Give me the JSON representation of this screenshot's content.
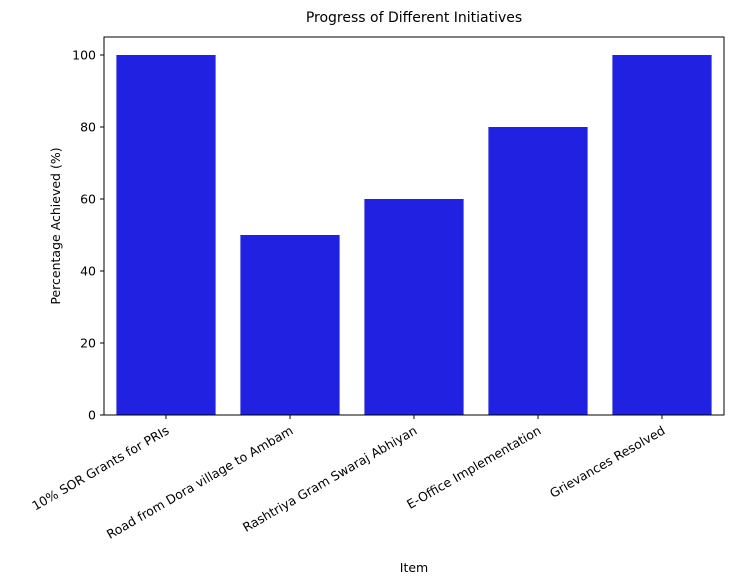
{
  "chart_data": {
    "type": "bar",
    "title": "Progress of Different Initiatives",
    "xlabel": "Item",
    "ylabel": "Percentage Achieved (%)",
    "categories": [
      "10% SOR Grants for PRIs",
      "Road from Dora village to Ambam",
      "Rashtriya Gram Swaraj Abhiyan",
      "E-Office Implementation",
      "Grievances Resolved"
    ],
    "values": [
      100,
      50,
      60,
      80,
      100
    ],
    "ylim": [
      0,
      105
    ],
    "yticks": [
      0,
      20,
      40,
      60,
      80,
      100
    ],
    "bar_color": "#2121e1",
    "grid": false,
    "legend": "none"
  }
}
